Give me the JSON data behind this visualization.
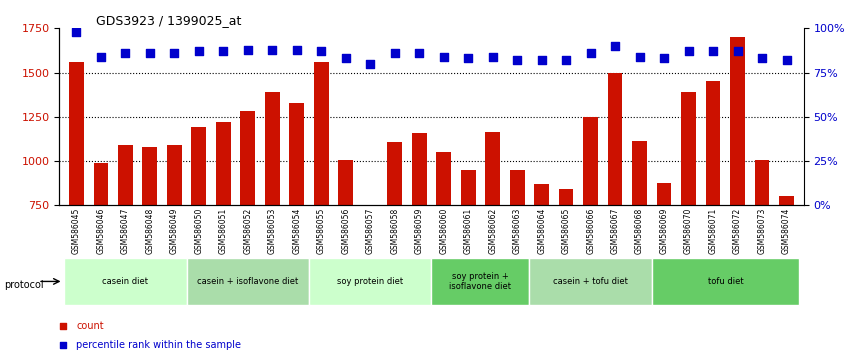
{
  "title": "GDS3923 / 1399025_at",
  "samples": [
    "GSM586045",
    "GSM586046",
    "GSM586047",
    "GSM586048",
    "GSM586049",
    "GSM586050",
    "GSM586051",
    "GSM586052",
    "GSM586053",
    "GSM586054",
    "GSM586055",
    "GSM586056",
    "GSM586057",
    "GSM586058",
    "GSM586059",
    "GSM586060",
    "GSM586061",
    "GSM586062",
    "GSM586063",
    "GSM586064",
    "GSM586065",
    "GSM586066",
    "GSM586067",
    "GSM586068",
    "GSM586069",
    "GSM586070",
    "GSM586071",
    "GSM586072",
    "GSM586073",
    "GSM586074"
  ],
  "counts": [
    1560,
    990,
    1090,
    1080,
    1090,
    1190,
    1220,
    1285,
    1390,
    1330,
    1560,
    1005,
    745,
    1105,
    1160,
    1050,
    950,
    1165,
    950,
    870,
    840,
    1250,
    1500,
    1115,
    875,
    1390,
    1450,
    1700,
    1005,
    800
  ],
  "percentile_ranks": [
    98,
    84,
    86,
    86,
    86,
    87,
    87,
    88,
    88,
    88,
    87,
    83,
    80,
    86,
    86,
    84,
    83,
    84,
    82,
    82,
    82,
    86,
    90,
    84,
    83,
    87,
    87,
    87,
    83,
    82
  ],
  "bar_color": "#cc1100",
  "dot_color": "#0000cc",
  "ylim_left": [
    750,
    1750
  ],
  "ylim_right": [
    0,
    100
  ],
  "yticks_left": [
    750,
    1000,
    1250,
    1500,
    1750
  ],
  "yticks_right": [
    0,
    25,
    50,
    75,
    100
  ],
  "groups": [
    {
      "label": "casein diet",
      "start": 0,
      "end": 5,
      "color": "#ccffcc"
    },
    {
      "label": "casein + isoflavone diet",
      "start": 5,
      "end": 10,
      "color": "#aaddaa"
    },
    {
      "label": "soy protein diet",
      "start": 10,
      "end": 15,
      "color": "#ccffcc"
    },
    {
      "label": "soy protein +\nisoflavone diet",
      "start": 15,
      "end": 19,
      "color": "#66cc66"
    },
    {
      "label": "casein + tofu diet",
      "start": 19,
      "end": 24,
      "color": "#aaddaa"
    },
    {
      "label": "tofu diet",
      "start": 24,
      "end": 30,
      "color": "#66cc66"
    }
  ],
  "legend_count_color": "#cc1100",
  "legend_dot_color": "#0000cc",
  "protocol_label": "protocol"
}
